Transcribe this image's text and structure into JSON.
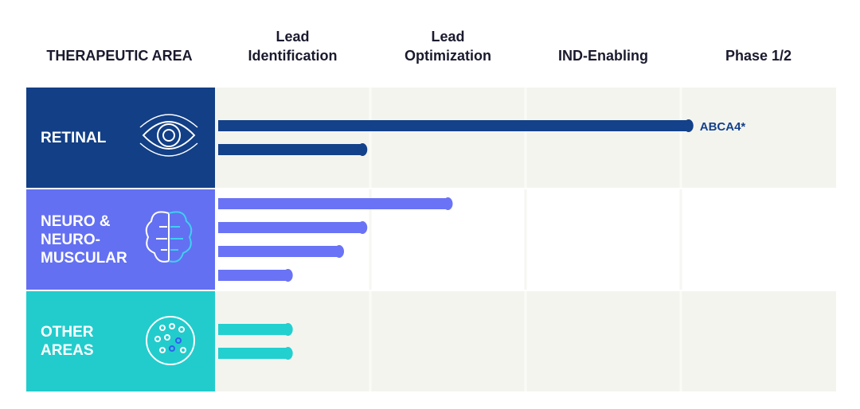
{
  "chart_data": {
    "type": "pipeline",
    "area_header": "THERAPEUTIC AREA",
    "stages": [
      "Lead Identification",
      "Lead Optimization",
      "IND-Enabling",
      "Phase 1/2"
    ],
    "xlim": [
      0,
      4
    ],
    "groups": [
      {
        "name": "RETINAL",
        "color": "#123f86",
        "bar_color": "#13418a",
        "programs": [
          {
            "value": 3.05,
            "label": "ABCA4*"
          },
          {
            "value": 0.95
          }
        ]
      },
      {
        "name": "NEURO & NEURO-MUSCULAR",
        "color": "#6470f2",
        "bar_color": "#6a73f5",
        "programs": [
          {
            "value": 1.5
          },
          {
            "value": 0.95
          },
          {
            "value": 0.8
          },
          {
            "value": 0.47
          }
        ]
      },
      {
        "name": "OTHER AREAS",
        "color": "#22cccc",
        "bar_color": "#22d0d0",
        "programs": [
          {
            "value": 0.47
          },
          {
            "value": 0.47
          }
        ]
      }
    ]
  }
}
